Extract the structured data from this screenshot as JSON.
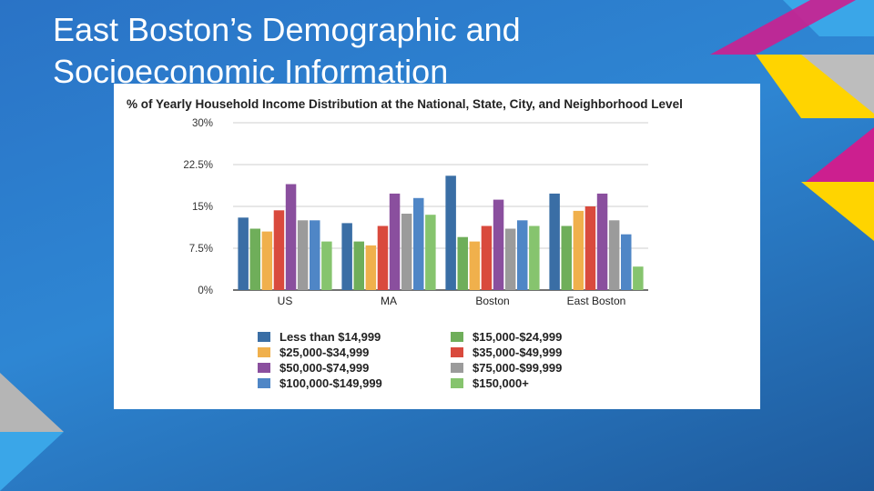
{
  "slide": {
    "title": "East Boston’s Demographic and Socioeconomic Information"
  },
  "colors": {
    "background": "#2e86d3",
    "magenta": "#cc1f8f",
    "yellow": "#ffd400",
    "gray": "#b5b5b5",
    "cyan": "#3aa6e8"
  },
  "chart_data": {
    "type": "bar",
    "title": "% of Yearly Household Income Distribution at the National, State, City, and Neighborhood Level",
    "categories": [
      "US",
      "MA",
      "Boston",
      "East Boston"
    ],
    "ylim": [
      0,
      30
    ],
    "yticks": [
      "0%",
      "7.5%",
      "15%",
      "22.5%",
      "30%"
    ],
    "ytick_values": [
      0,
      7.5,
      15,
      22.5,
      30
    ],
    "grid": true,
    "legend_position": "bottom",
    "series": [
      {
        "name": "Less than $14,999",
        "color": "#3a6ea5",
        "values": [
          13.0,
          12.0,
          20.5,
          17.3
        ]
      },
      {
        "name": "$15,000-$24,999",
        "color": "#6fae5a",
        "values": [
          11.0,
          8.7,
          9.5,
          11.5
        ]
      },
      {
        "name": "$25,000-$34,999",
        "color": "#f0b04c",
        "values": [
          10.5,
          8.0,
          8.7,
          14.2
        ]
      },
      {
        "name": "$35,000-$49,999",
        "color": "#d94a3d",
        "values": [
          14.3,
          11.5,
          11.5,
          15.0
        ]
      },
      {
        "name": "$50,000-$74,999",
        "color": "#8a4f9e",
        "values": [
          19.0,
          17.3,
          16.2,
          17.3
        ]
      },
      {
        "name": "$75,000-$99,999",
        "color": "#9b9b9b",
        "values": [
          12.5,
          13.7,
          11.0,
          12.5
        ]
      },
      {
        "name": "$100,000-$149,999",
        "color": "#4f86c6",
        "values": [
          12.5,
          16.5,
          12.5,
          10.0
        ]
      },
      {
        "name": "$150,000+",
        "color": "#86c46e",
        "values": [
          8.7,
          13.5,
          11.5,
          4.2
        ]
      }
    ]
  }
}
